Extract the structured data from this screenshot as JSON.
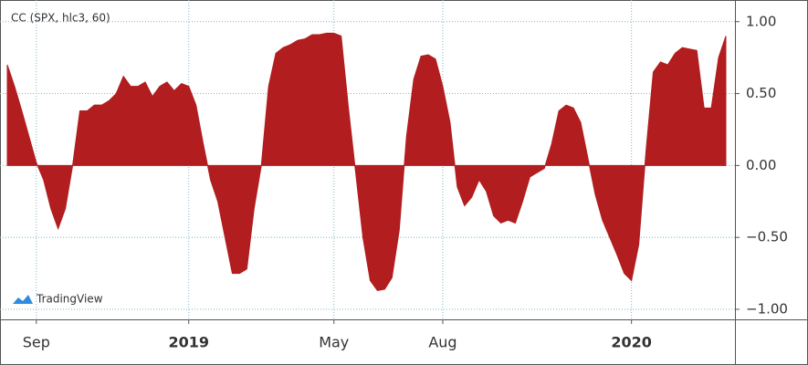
{
  "chart_data": {
    "type": "area",
    "watermark": "TradingView",
    "categories": [
      null,
      null,
      null,
      null,
      "Sep",
      null,
      null,
      null,
      null,
      null,
      null,
      null,
      null,
      null,
      null,
      null,
      null,
      null,
      null,
      null,
      null,
      null,
      null,
      null,
      null,
      "2019",
      null,
      null,
      null,
      null,
      null,
      null,
      null,
      null,
      null,
      null,
      null,
      null,
      null,
      null,
      null,
      null,
      null,
      null,
      null,
      "May",
      null,
      null,
      null,
      null,
      null,
      null,
      null,
      null,
      null,
      null,
      null,
      null,
      null,
      null,
      "Aug",
      null,
      null,
      null,
      null,
      null,
      null,
      null,
      null,
      null,
      null,
      null,
      null,
      null,
      null,
      null,
      null,
      null,
      null,
      null,
      null,
      null,
      null,
      null,
      null,
      null,
      "2020",
      null,
      null,
      null,
      null,
      null,
      null,
      null,
      null,
      null,
      null,
      null,
      null,
      null
    ],
    "series": [
      {
        "name": "CC (SPX, hlc3, 60)",
        "color": "#b21d1f",
        "values": [
          0.7,
          0.55,
          0.38,
          0.2,
          0.02,
          -0.1,
          -0.3,
          -0.44,
          -0.3,
          0.0,
          0.38,
          0.38,
          0.42,
          0.42,
          0.45,
          0.5,
          0.62,
          0.55,
          0.55,
          0.58,
          0.48,
          0.55,
          0.58,
          0.52,
          0.57,
          0.55,
          0.42,
          0.15,
          -0.1,
          -0.25,
          -0.5,
          -0.75,
          -0.75,
          -0.72,
          -0.3,
          0.0,
          0.55,
          0.78,
          0.82,
          0.84,
          0.87,
          0.88,
          0.91,
          0.91,
          0.92,
          0.92,
          0.9,
          0.4,
          -0.05,
          -0.5,
          -0.8,
          -0.87,
          -0.86,
          -0.78,
          -0.45,
          0.2,
          0.6,
          0.76,
          0.77,
          0.74,
          0.55,
          0.3,
          -0.15,
          -0.28,
          -0.22,
          -0.1,
          -0.18,
          -0.35,
          -0.4,
          -0.38,
          -0.4,
          -0.25,
          -0.08,
          -0.05,
          -0.02,
          0.15,
          0.38,
          0.42,
          0.4,
          0.3,
          0.05,
          -0.2,
          -0.38,
          -0.5,
          -0.62,
          -0.75,
          -0.8,
          -0.55,
          0.1,
          0.65,
          0.72,
          0.7,
          0.78,
          0.82,
          0.81,
          0.8,
          0.4,
          0.4,
          0.75,
          0.9
        ]
      }
    ],
    "ylim": [
      -1.07,
      1.1
    ],
    "yticks": [
      {
        "value": 1,
        "label": "1.00"
      },
      {
        "value": 0.5,
        "label": "0.50"
      },
      {
        "value": 0,
        "label": "0.00"
      },
      {
        "value": -0.5,
        "label": "−0.50"
      },
      {
        "value": -1,
        "label": "−1.00"
      }
    ],
    "grid": true
  }
}
